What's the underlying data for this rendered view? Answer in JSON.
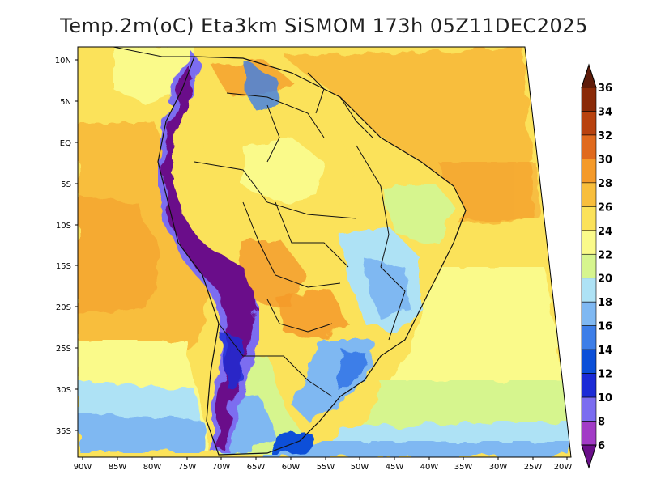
{
  "title": "Temp.2m(oC) Eta3km SiSMOM 173h 05Z11DEC2025",
  "lat_labels": [
    "10N",
    "5N",
    "EQ",
    "5S",
    "10S",
    "15S",
    "20S",
    "25S",
    "30S",
    "35S"
  ],
  "lon_labels": [
    "90W",
    "85W",
    "80W",
    "75W",
    "70W",
    "65W",
    "60W",
    "55W",
    "50W",
    "45W",
    "40W",
    "35W",
    "30W",
    "25W",
    "20W"
  ],
  "colorbar": {
    "labels": [
      "6",
      "8",
      "10",
      "12",
      "14",
      "16",
      "18",
      "20",
      "22",
      "24",
      "26",
      "28",
      "30",
      "32",
      "34",
      "36"
    ],
    "colors": [
      "#6a0f8a",
      "#a23bc6",
      "#7b6df0",
      "#1b2bd6",
      "#0b4fd8",
      "#3d7ee8",
      "#7fb8f2",
      "#aee2f5",
      "#d6f58e",
      "#fafa8a",
      "#fbe25a",
      "#f8be3c",
      "#f49a2a",
      "#e06a1e",
      "#b8420f",
      "#8a2a08",
      "#5e1c0a"
    ]
  }
}
